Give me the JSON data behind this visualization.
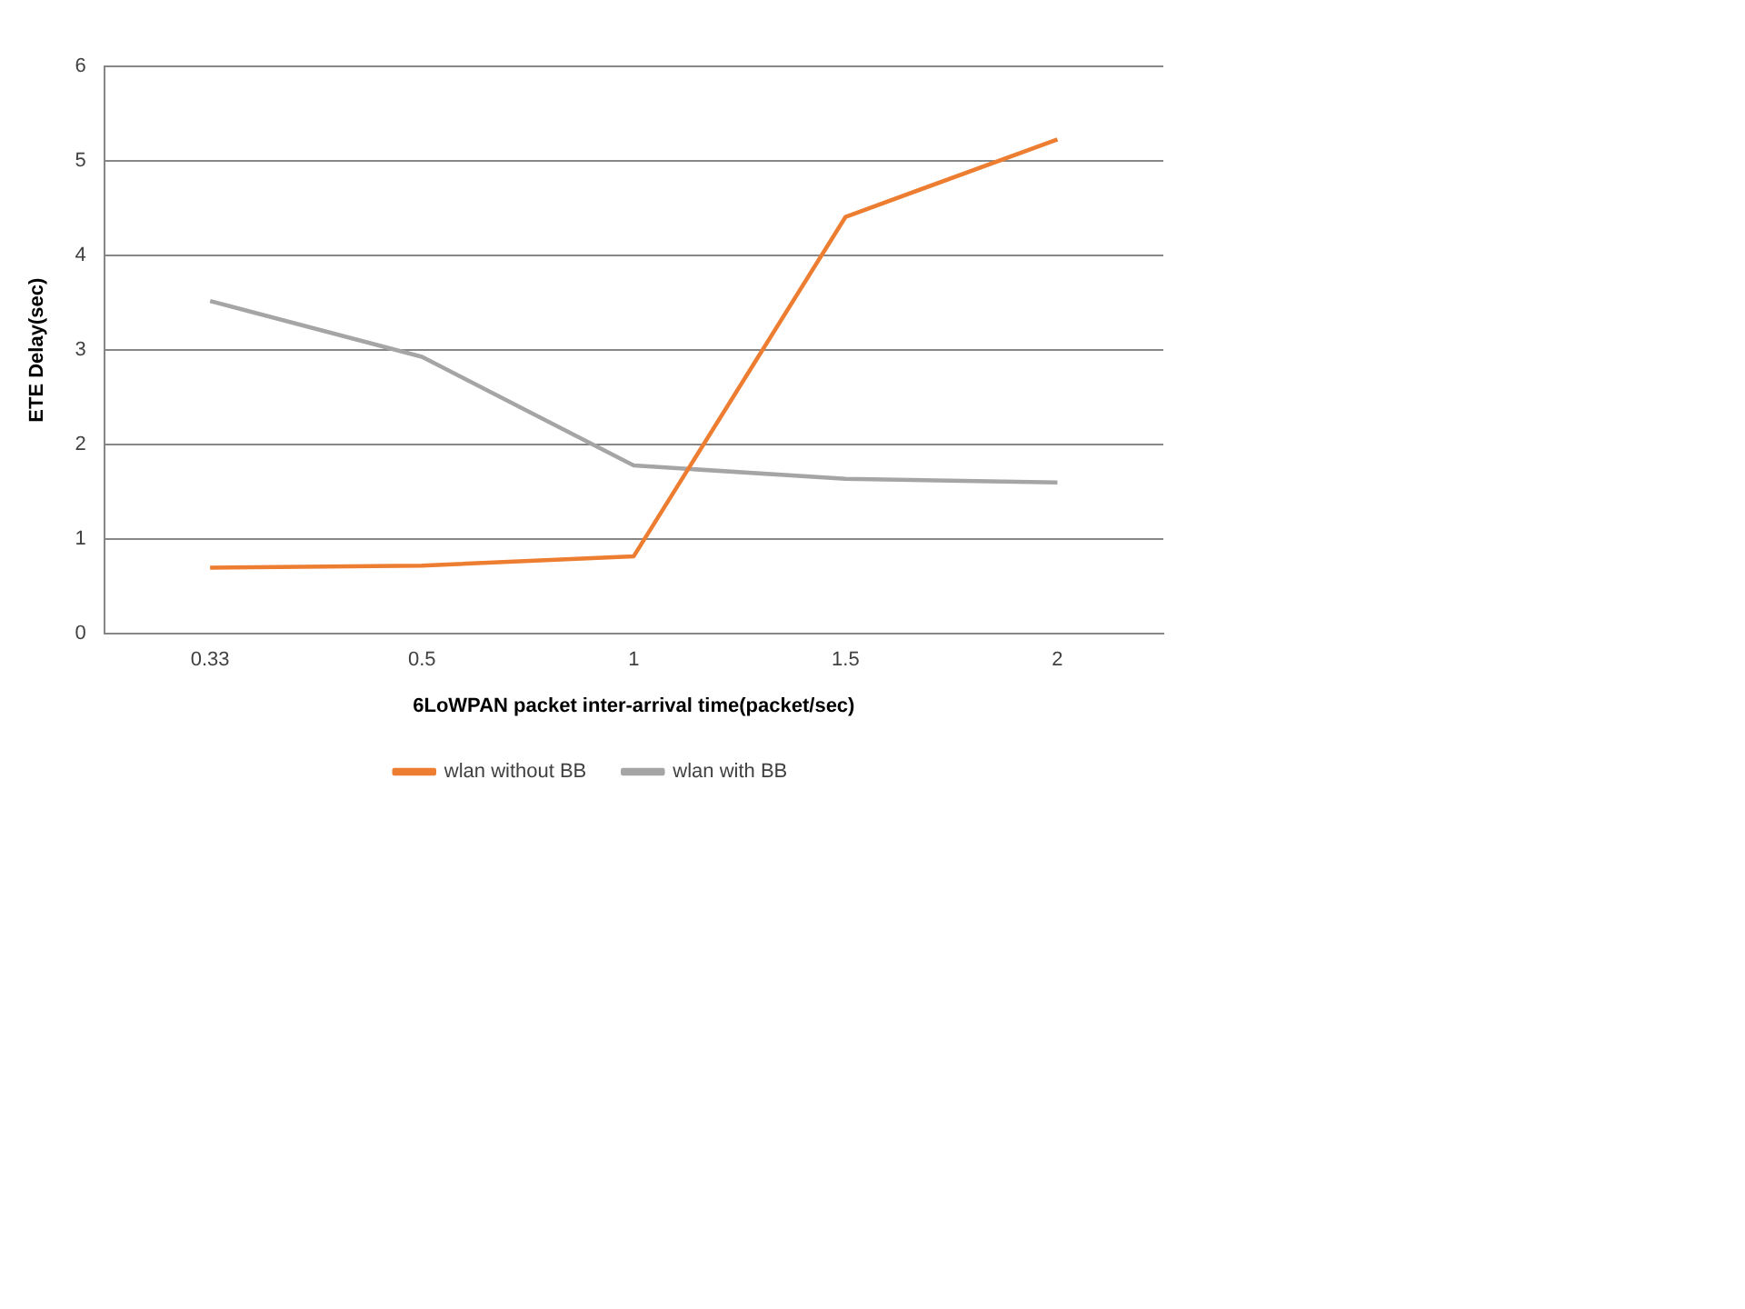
{
  "chart_data": {
    "type": "line",
    "xlabel": "6LoWPAN packet inter-arrival time(packet/sec)",
    "ylabel": "ETE Delay(sec)",
    "categories": [
      "0.33",
      "0.5",
      "1",
      "1.5",
      "2"
    ],
    "series": [
      {
        "name": "wlan without BB",
        "color": "#ed7d31",
        "values": [
          0.7,
          0.72,
          0.82,
          4.41,
          5.23
        ]
      },
      {
        "name": "wlan with BB",
        "color": "#a5a5a5",
        "values": [
          3.52,
          2.93,
          1.78,
          1.64,
          1.6
        ]
      }
    ],
    "ylim": [
      0,
      6
    ],
    "yticks": [
      0,
      1,
      2,
      3,
      4,
      5,
      6
    ],
    "grid": "y",
    "legend": "bottom",
    "marker": "none",
    "line_style": "solid"
  }
}
